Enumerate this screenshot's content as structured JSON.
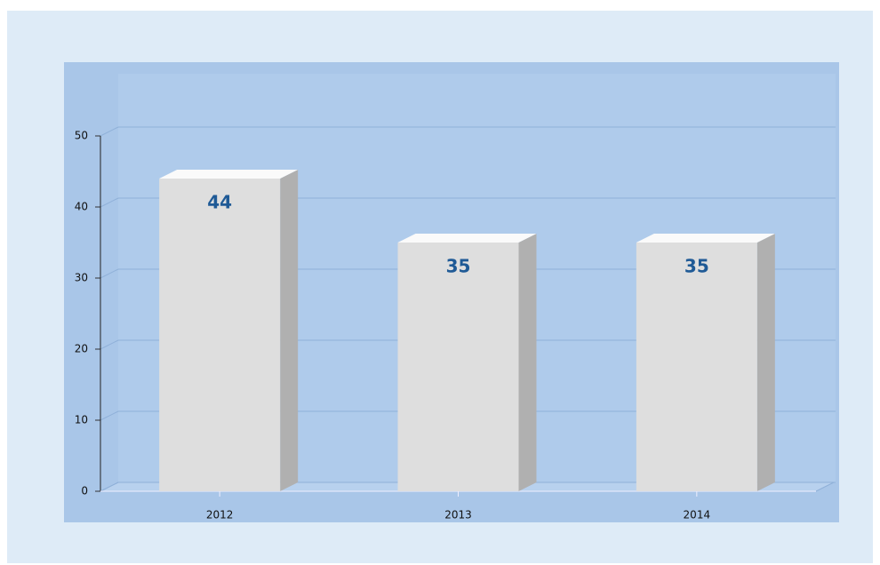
{
  "chart_data": {
    "type": "bar",
    "categories": [
      "2012",
      "2013",
      "2014"
    ],
    "values": [
      44,
      35,
      35
    ],
    "color": "#dedede",
    "ylim": [
      0,
      50
    ],
    "yticks": [
      0,
      10,
      20,
      30,
      40,
      50
    ],
    "grid": true
  }
}
